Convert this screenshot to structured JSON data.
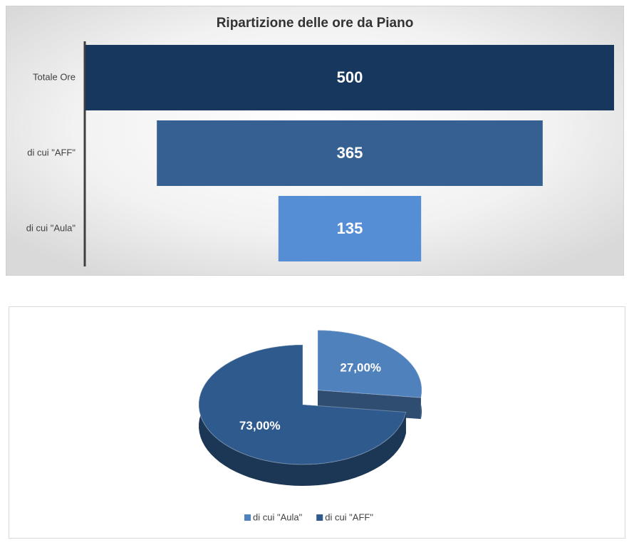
{
  "chart_data": [
    {
      "type": "funnel",
      "title": "Ripartizione delle ore da Piano",
      "categories": [
        "Totale Ore",
        "di cui \"AFF\"",
        "di cui \"Aula\""
      ],
      "values": [
        500,
        365,
        135
      ],
      "colors": [
        "#17375e",
        "#376092",
        "#558ed5"
      ]
    },
    {
      "type": "pie",
      "categories": [
        "di cui \"Aula\"",
        "di cui \"AFF\""
      ],
      "values": [
        27,
        73
      ],
      "value_labels": [
        "27,00%",
        "73,00%"
      ],
      "colors": [
        "#4f81bd",
        "#2f5a8e"
      ],
      "legend": "bottom"
    }
  ]
}
